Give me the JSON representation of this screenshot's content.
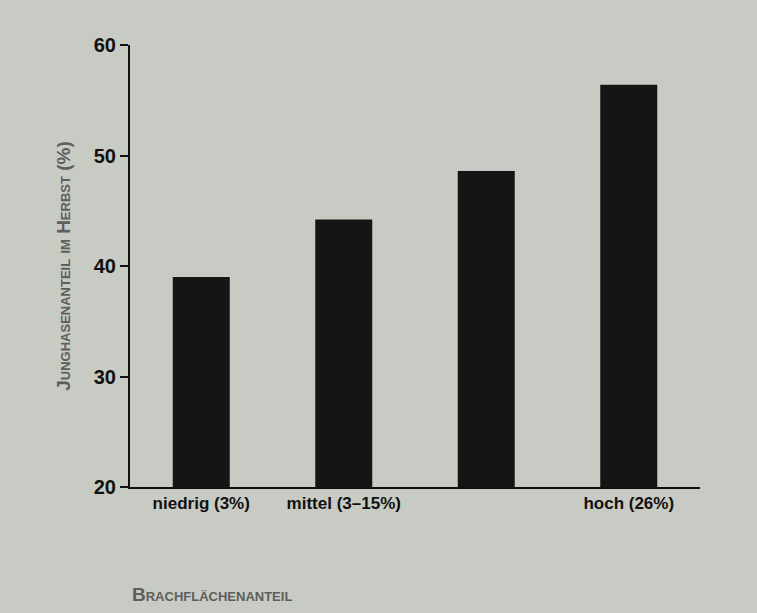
{
  "chart_data": {
    "type": "bar",
    "y_label": "Junghasenanteil im Herbst (%)",
    "x_label": "Brachflächenanteil",
    "categories": [
      "niedrig (3%)",
      "mittel (3–15%)",
      null,
      "hoch (26%)"
    ],
    "values": [
      39,
      44.2,
      48.6,
      56.4
    ],
    "color": "#151515",
    "ylim": [
      20,
      60
    ],
    "yticks": [
      20,
      30,
      40,
      50,
      60
    ],
    "grid": false
  }
}
